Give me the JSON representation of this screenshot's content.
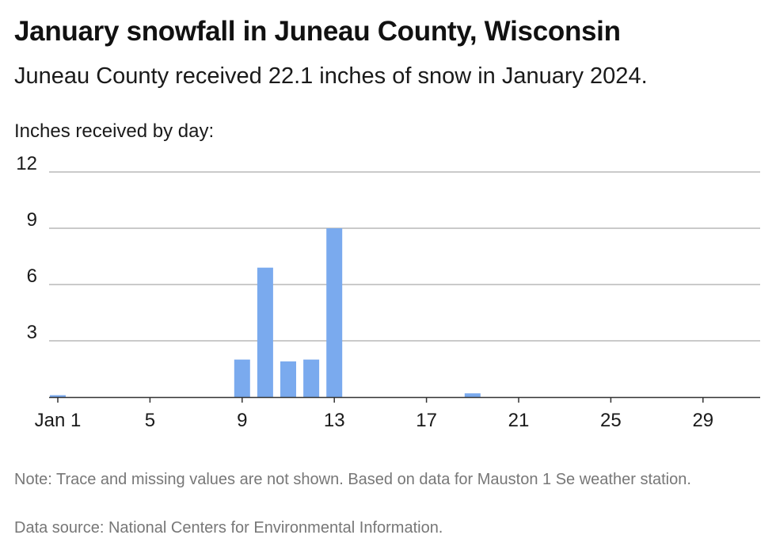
{
  "title": "January snowfall in Juneau County, Wisconsin",
  "subtitle": "Juneau County received 22.1 inches of snow in January 2024.",
  "ylabel": "Inches received by day:",
  "note": "Note: Trace and missing values are not shown. Based on data for Mauston 1 Se weather station.",
  "source": "Data source: National Centers for Environmental Information.",
  "colors": {
    "bar": "#7aaaee",
    "grid": "#b8b8b8",
    "axis": "#333333"
  },
  "chart_data": {
    "type": "bar",
    "title": "January snowfall in Juneau County, Wisconsin",
    "ylabel": "Inches received by day:",
    "ylim": [
      0,
      12
    ],
    "yticks": [
      3,
      6,
      9,
      12
    ],
    "grid": true,
    "x_tick_labels": [
      {
        "day": 1,
        "label": "Jan 1"
      },
      {
        "day": 5,
        "label": "5"
      },
      {
        "day": 9,
        "label": "9"
      },
      {
        "day": 13,
        "label": "13"
      },
      {
        "day": 17,
        "label": "17"
      },
      {
        "day": 21,
        "label": "21"
      },
      {
        "day": 25,
        "label": "25"
      },
      {
        "day": 29,
        "label": "29"
      }
    ],
    "days": [
      1,
      2,
      3,
      4,
      5,
      6,
      7,
      8,
      9,
      10,
      11,
      12,
      13,
      14,
      15,
      16,
      17,
      18,
      19,
      20,
      21,
      22,
      23,
      24,
      25,
      26,
      27,
      28,
      29,
      30,
      31
    ],
    "values": [
      0.1,
      0,
      0,
      0,
      0,
      0,
      0,
      0,
      2.0,
      6.9,
      1.9,
      2.0,
      9.0,
      0,
      0,
      0,
      0,
      0,
      0.2,
      0,
      0,
      0,
      0,
      0,
      0,
      0,
      0,
      0,
      0,
      0,
      0
    ]
  }
}
